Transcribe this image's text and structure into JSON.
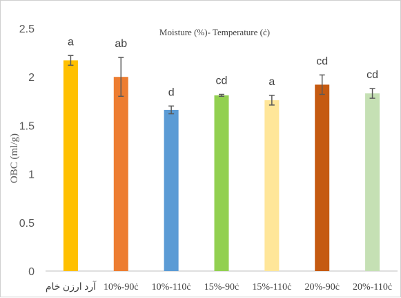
{
  "chart_data": {
    "type": "bar",
    "title": "Moisture (%)- Temperature (ċ)",
    "xlabel": "",
    "ylabel": "OBC (ml/g)",
    "ylim": [
      0,
      2.5
    ],
    "yticks": [
      "0",
      "0.5",
      "1",
      "1.5",
      "2",
      "2.5"
    ],
    "grid": false,
    "categories": [
      "آرد ارزن خام",
      "10%-90ċ",
      "10%-110ċ",
      "15%-90ċ",
      "15%-110ċ",
      "20%-90ċ",
      "20%-110ċ"
    ],
    "values": [
      2.17,
      2.0,
      1.66,
      1.81,
      1.76,
      1.92,
      1.83
    ],
    "errors": [
      0.05,
      0.2,
      0.04,
      0.01,
      0.05,
      0.1,
      0.05
    ],
    "letters": [
      "a",
      "ab",
      "d",
      "cd",
      "a",
      "cd",
      "cd"
    ],
    "colors": [
      "#FFC000",
      "#ED7D31",
      "#5B9BD5",
      "#92D050",
      "#FFE699",
      "#C55A11",
      "#C5E0B4"
    ]
  }
}
